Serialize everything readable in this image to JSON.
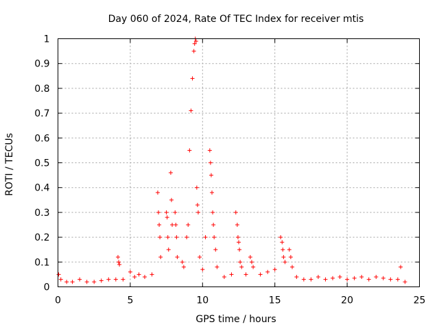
{
  "chart_data": {
    "type": "scatter",
    "title": "Day 060 of 2024, Rate Of TEC Index for receiver mtis",
    "xlabel": "GPS time / hours",
    "ylabel": "ROTI / TECUs",
    "xlim": [
      0,
      25
    ],
    "ylim": [
      0,
      1
    ],
    "xticks": [
      0,
      5,
      10,
      15,
      20,
      25
    ],
    "xtick_labels": [
      "0",
      "5",
      "10",
      "15",
      "20",
      "25"
    ],
    "yticks": [
      0,
      0.1,
      0.2,
      0.3,
      0.4,
      0.5,
      0.6,
      0.7,
      0.8,
      0.9,
      1
    ],
    "ytick_labels": [
      "0",
      "0.1",
      "0.2",
      "0.3",
      "0.4",
      "0.5",
      "0.6",
      "0.7",
      "0.8",
      "0.9",
      "1"
    ],
    "grid": true,
    "legend": "none",
    "marker": "+",
    "marker_color": "#ff0000",
    "series": [
      {
        "x": [
          0.05,
          0.2,
          0.6,
          1.0,
          1.5,
          2.0,
          2.5,
          3.0,
          3.5,
          4.0,
          4.15,
          4.2,
          4.25,
          4.5,
          5.0,
          5.3,
          5.6,
          6.0,
          6.5,
          6.9,
          6.95,
          7.0,
          7.05,
          7.1,
          7.5,
          7.55,
          7.6,
          7.65,
          7.8,
          7.85,
          7.9,
          8.1,
          8.15,
          8.2,
          8.25,
          8.6,
          8.7,
          8.9,
          9.0,
          9.1,
          9.2,
          9.3,
          9.4,
          9.45,
          9.5,
          9.55,
          9.6,
          9.65,
          9.7,
          9.8,
          10.0,
          10.2,
          10.5,
          10.55,
          10.6,
          10.65,
          10.7,
          10.75,
          10.8,
          10.9,
          11.0,
          11.5,
          12.0,
          12.3,
          12.4,
          12.45,
          12.5,
          12.55,
          12.6,
          12.7,
          13.0,
          13.3,
          13.4,
          13.5,
          14.0,
          14.5,
          15.0,
          15.4,
          15.5,
          15.55,
          15.6,
          15.7,
          16.0,
          16.1,
          16.2,
          16.5,
          17.0,
          17.5,
          18.0,
          18.5,
          19.0,
          19.5,
          20.0,
          20.5,
          21.0,
          21.5,
          22.0,
          22.5,
          23.0,
          23.5,
          23.7,
          24.0
        ],
        "y": [
          0.05,
          0.03,
          0.02,
          0.02,
          0.03,
          0.02,
          0.02,
          0.025,
          0.03,
          0.03,
          0.12,
          0.1,
          0.09,
          0.03,
          0.06,
          0.04,
          0.05,
          0.04,
          0.05,
          0.38,
          0.3,
          0.25,
          0.2,
          0.12,
          0.3,
          0.28,
          0.2,
          0.15,
          0.46,
          0.35,
          0.25,
          0.3,
          0.25,
          0.2,
          0.12,
          0.1,
          0.08,
          0.2,
          0.25,
          0.55,
          0.71,
          0.84,
          0.95,
          0.98,
          1.0,
          0.99,
          0.4,
          0.33,
          0.3,
          0.12,
          0.07,
          0.2,
          0.55,
          0.5,
          0.45,
          0.38,
          0.3,
          0.25,
          0.2,
          0.15,
          0.08,
          0.04,
          0.05,
          0.3,
          0.25,
          0.2,
          0.18,
          0.15,
          0.1,
          0.08,
          0.05,
          0.12,
          0.1,
          0.08,
          0.05,
          0.06,
          0.07,
          0.2,
          0.18,
          0.15,
          0.12,
          0.1,
          0.15,
          0.12,
          0.08,
          0.04,
          0.03,
          0.03,
          0.04,
          0.03,
          0.035,
          0.04,
          0.03,
          0.035,
          0.04,
          0.03,
          0.04,
          0.035,
          0.03,
          0.03,
          0.08,
          0.02
        ]
      }
    ]
  }
}
